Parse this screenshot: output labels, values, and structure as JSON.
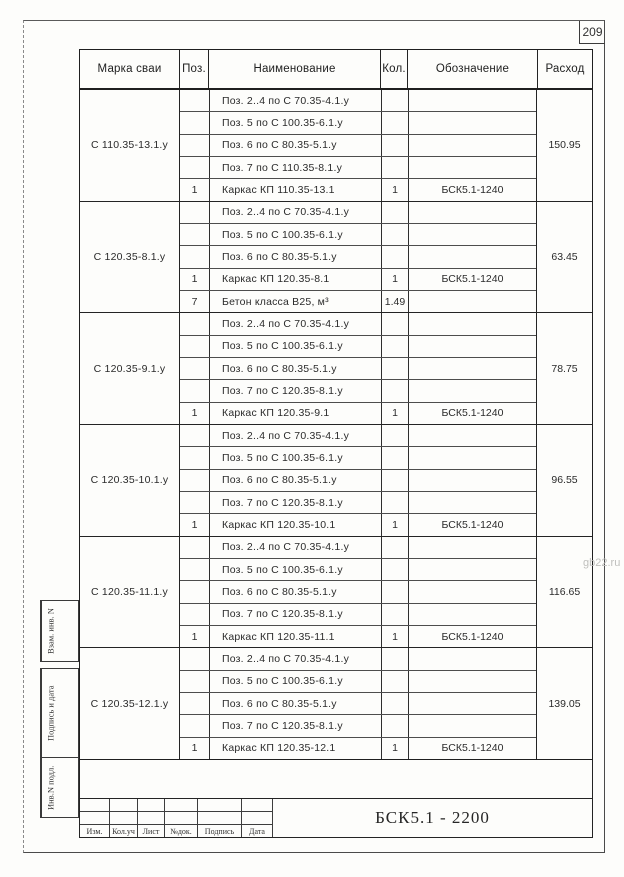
{
  "page": {
    "number": "209",
    "watermark": "gb22.ru"
  },
  "table": {
    "headers": {
      "marka": "Марка сваи",
      "poz": "Поз.",
      "name": "Наименование",
      "kol": "Кол.",
      "oboz": "Обозначение",
      "rashod": "Расход"
    },
    "groups": [
      {
        "marka": "С 110.35-13.1.у",
        "rashod": "150.95",
        "rows": [
          {
            "poz": "",
            "name": "Поз. 2..4 по С 70.35-4.1.у",
            "kol": "",
            "oboz": ""
          },
          {
            "poz": "",
            "name": "Поз. 5 по С 100.35-6.1.у",
            "kol": "",
            "oboz": ""
          },
          {
            "poz": "",
            "name": "Поз. 6 по С 80.35-5.1.у",
            "kol": "",
            "oboz": ""
          },
          {
            "poz": "",
            "name": "Поз. 7 по С 110.35-8.1.у",
            "kol": "",
            "oboz": ""
          },
          {
            "poz": "1",
            "name": "Каркас КП 110.35-13.1",
            "kol": "1",
            "oboz": "БСК5.1-1240"
          }
        ]
      },
      {
        "marka": "С 120.35-8.1.у",
        "rashod": "63.45",
        "rows": [
          {
            "poz": "",
            "name": "Поз. 2..4 по С 70.35-4.1.у",
            "kol": "",
            "oboz": ""
          },
          {
            "poz": "",
            "name": "Поз. 5 по С 100.35-6.1.у",
            "kol": "",
            "oboz": ""
          },
          {
            "poz": "",
            "name": "Поз. 6 по С 80.35-5.1.у",
            "kol": "",
            "oboz": ""
          },
          {
            "poz": "1",
            "name": "Каркас КП 120.35-8.1",
            "kol": "1",
            "oboz": "БСК5.1-1240"
          },
          {
            "poz": "7",
            "name": "Бетон класса В25, м³",
            "kol": "1.49",
            "oboz": ""
          }
        ]
      },
      {
        "marka": "С 120.35-9.1.у",
        "rashod": "78.75",
        "rows": [
          {
            "poz": "",
            "name": "Поз. 2..4 по С 70.35-4.1.у",
            "kol": "",
            "oboz": ""
          },
          {
            "poz": "",
            "name": "Поз. 5 по С 100.35-6.1.у",
            "kol": "",
            "oboz": ""
          },
          {
            "poz": "",
            "name": "Поз. 6 по С 80.35-5.1.у",
            "kol": "",
            "oboz": ""
          },
          {
            "poz": "",
            "name": "Поз. 7 по С 120.35-8.1.у",
            "kol": "",
            "oboz": ""
          },
          {
            "poz": "1",
            "name": "Каркас КП 120.35-9.1",
            "kol": "1",
            "oboz": "БСК5.1-1240"
          }
        ]
      },
      {
        "marka": "С 120.35-10.1.у",
        "rashod": "96.55",
        "rows": [
          {
            "poz": "",
            "name": "Поз. 2..4 по С 70.35-4.1.у",
            "kol": "",
            "oboz": ""
          },
          {
            "poz": "",
            "name": "Поз. 5 по С 100.35-6.1.у",
            "kol": "",
            "oboz": ""
          },
          {
            "poz": "",
            "name": "Поз. 6 по С 80.35-5.1.у",
            "kol": "",
            "oboz": ""
          },
          {
            "poz": "",
            "name": "Поз. 7 по С 120.35-8.1.у",
            "kol": "",
            "oboz": ""
          },
          {
            "poz": "1",
            "name": "Каркас КП 120.35-10.1",
            "kol": "1",
            "oboz": "БСК5.1-1240"
          }
        ]
      },
      {
        "marka": "С 120.35-11.1.у",
        "rashod": "116.65",
        "rows": [
          {
            "poz": "",
            "name": "Поз. 2..4 по С 70.35-4.1.у",
            "kol": "",
            "oboz": ""
          },
          {
            "poz": "",
            "name": "Поз. 5 по С 100.35-6.1.у",
            "kol": "",
            "oboz": ""
          },
          {
            "poz": "",
            "name": "Поз. 6 по С 80.35-5.1.у",
            "kol": "",
            "oboz": ""
          },
          {
            "poz": "",
            "name": "Поз. 7 по С 120.35-8.1.у",
            "kol": "",
            "oboz": ""
          },
          {
            "poz": "1",
            "name": "Каркас КП 120.35-11.1",
            "kol": "1",
            "oboz": "БСК5.1-1240"
          }
        ]
      },
      {
        "marka": "С 120.35-12.1.у",
        "rashod": "139.05",
        "rows": [
          {
            "poz": "",
            "name": "Поз. 2..4 по С 70.35-4.1.у",
            "kol": "",
            "oboz": ""
          },
          {
            "poz": "",
            "name": "Поз. 5 по С 100.35-6.1.у",
            "kol": "",
            "oboz": ""
          },
          {
            "poz": "",
            "name": "Поз. 6 по С 80.35-5.1.у",
            "kol": "",
            "oboz": ""
          },
          {
            "poz": "",
            "name": "Поз. 7 по С 120.35-8.1.у",
            "kol": "",
            "oboz": ""
          },
          {
            "poz": "1",
            "name": "Каркас КП 120.35-12.1",
            "kol": "1",
            "oboz": "БСК5.1-1240"
          }
        ]
      }
    ]
  },
  "title_block": {
    "doc_number": "БСК5.1 - 2200",
    "rev_labels": [
      "Изм.",
      "Кол.уч",
      "Лист",
      "№док.",
      "Подпись",
      "Дата"
    ]
  },
  "side_labels": [
    "Взам. инв. N",
    "Подпись и дата",
    "Инв.N подл."
  ]
}
